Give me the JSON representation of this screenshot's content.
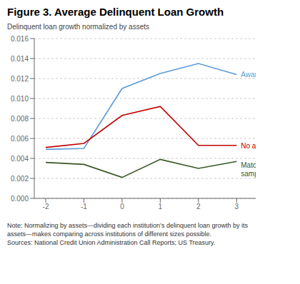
{
  "chart_data": {
    "type": "line",
    "title": "Figure 3. Average Delinquent Loan Growth",
    "ylabel": "Delinquent loan growth normalized by assets",
    "x": [
      -2,
      -1,
      0,
      1,
      2,
      3
    ],
    "series": [
      {
        "name": "Award",
        "color": "#5B9BD5",
        "values": [
          0.0049,
          0.005,
          0.011,
          0.0125,
          0.0135,
          0.0124
        ]
      },
      {
        "name": "No award",
        "color": "#C00000",
        "values": [
          0.0051,
          0.0055,
          0.0083,
          0.0092,
          0.0053,
          0.0053
        ]
      },
      {
        "name": "Matched\nsample",
        "color": "#375623",
        "values": [
          0.0036,
          0.0034,
          0.0021,
          0.0039,
          0.003,
          0.0037
        ]
      }
    ],
    "xlim": [
      -2.3,
      3.5
    ],
    "xticks": [
      -2,
      -1,
      0,
      1,
      2,
      3
    ],
    "ylim": [
      0,
      0.016
    ],
    "yticks": [
      {
        "value": 0,
        "label": "0.000"
      },
      0.002,
      0.004,
      0.006,
      0.008,
      {
        "value": 0.01,
        "label": "0.010"
      },
      0.012,
      0.014,
      0.016
    ],
    "grid": true,
    "notes": [
      "Note: Normalizing by assets—dividing each institution’s delinquent loan growth by its",
      "assets—makes comparing across institutions of different sizes possible.",
      "Sources: National Credit Union Administration Call Reports; US Treasury."
    ]
  }
}
